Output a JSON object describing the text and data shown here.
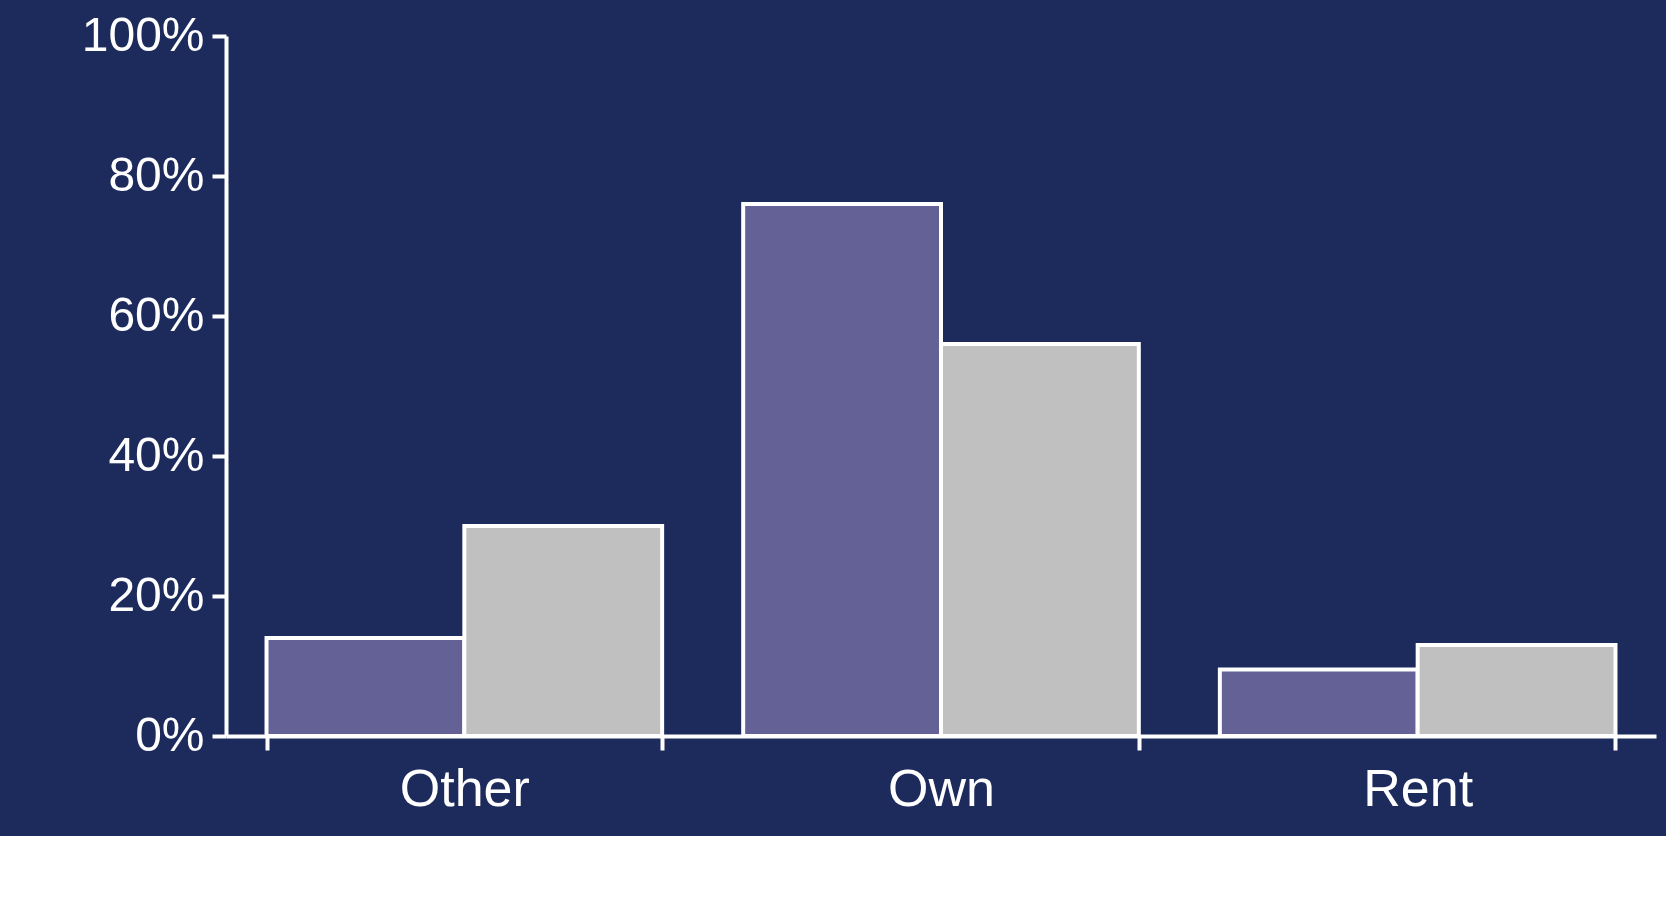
{
  "chart_data": {
    "type": "bar",
    "categories": [
      "Other",
      "Own",
      "Rent"
    ],
    "series": [
      {
        "color": "#636196",
        "values": [
          14,
          76,
          9.5
        ]
      },
      {
        "color": "#c0c0c0",
        "values": [
          30,
          56,
          13
        ]
      }
    ],
    "ylim": [
      0,
      100
    ],
    "yticks": [
      {
        "value": 0,
        "label": "0%"
      },
      {
        "value": 20,
        "label": "20%"
      },
      {
        "value": 40,
        "label": "40%"
      },
      {
        "value": 60,
        "label": "60%"
      },
      {
        "value": 80,
        "label": "80%"
      },
      {
        "value": 100,
        "label": "100%"
      }
    ],
    "grid": false,
    "legend": false
  }
}
